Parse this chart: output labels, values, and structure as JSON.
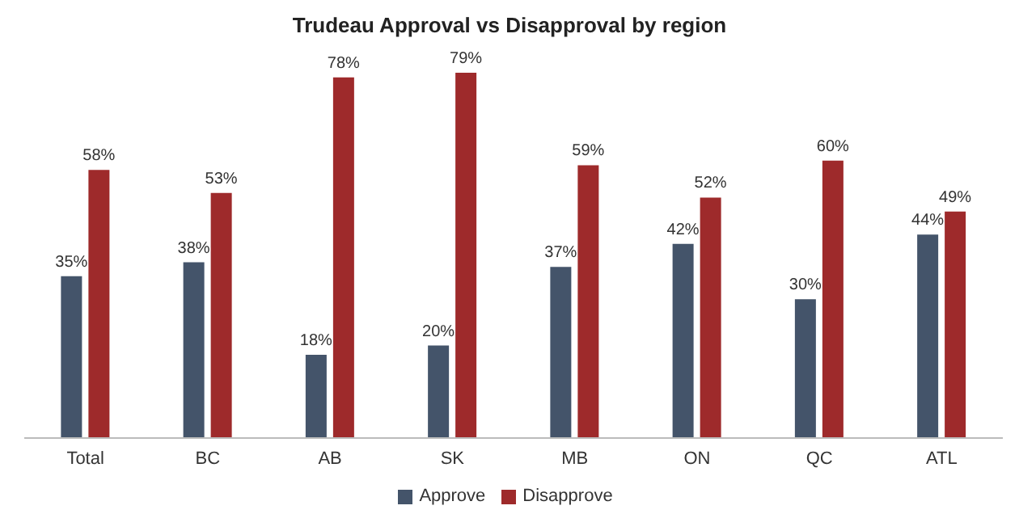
{
  "chart_data": {
    "type": "bar",
    "title": "Trudeau Approval vs Disapproval by region",
    "categories": [
      "Total",
      "BC",
      "AB",
      "SK",
      "MB",
      "ON",
      "QC",
      "ATL"
    ],
    "series": [
      {
        "name": "Approve",
        "color": "#44546a",
        "values": [
          35,
          38,
          18,
          20,
          37,
          42,
          30,
          44
        ],
        "value_labels": [
          "35%",
          "38%",
          "18%",
          "20%",
          "37%",
          "42%",
          "30%",
          "44%"
        ]
      },
      {
        "name": "Disapprove",
        "color": "#9e2a2b",
        "values": [
          58,
          53,
          78,
          79,
          59,
          52,
          60,
          49
        ],
        "value_labels": [
          "58%",
          "53%",
          "78%",
          "79%",
          "59%",
          "52%",
          "60%",
          "49%"
        ]
      }
    ],
    "legend": "bottom"
  }
}
